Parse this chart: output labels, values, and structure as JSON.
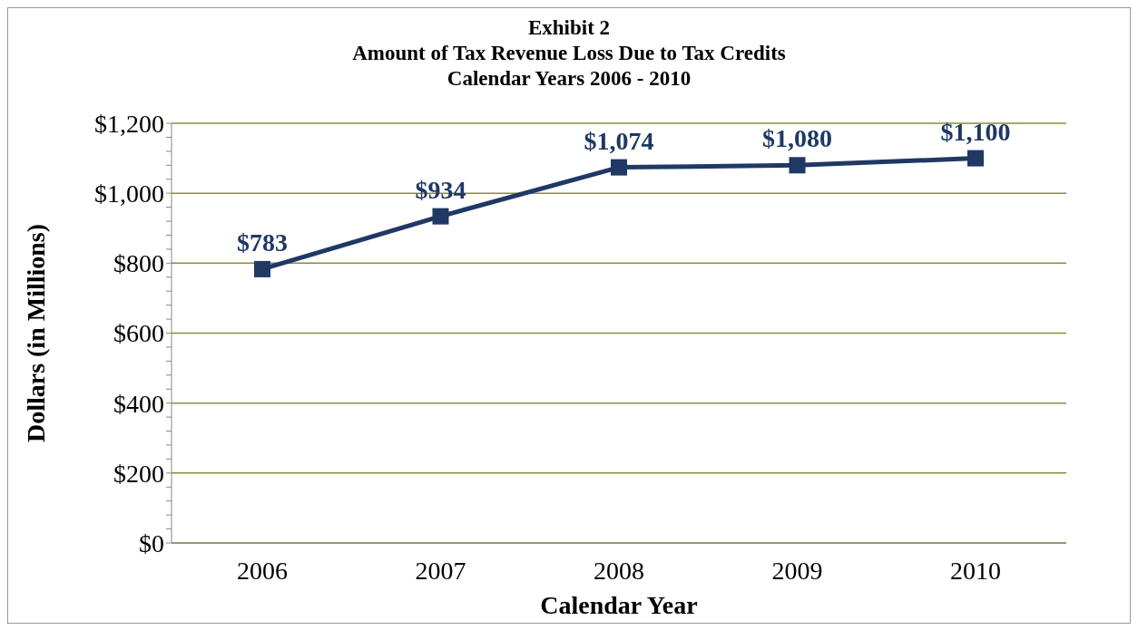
{
  "chart_data": {
    "type": "line",
    "title": "Exhibit 2\nAmount of Tax Revenue Loss Due to Tax Credits\nCalendar Years 2006 - 2010",
    "xlabel": "Calendar Year",
    "ylabel": "Dollars (in Millions)",
    "categories": [
      "2006",
      "2007",
      "2008",
      "2009",
      "2010"
    ],
    "series": [
      {
        "color": "#1f3864",
        "values": [
          783,
          934,
          1074,
          1080,
          1100
        ],
        "value_labels": [
          "$783",
          "$934",
          "$1,074",
          "$1,080",
          "$1,100"
        ]
      }
    ],
    "ylim": [
      0,
      1200
    ],
    "yticks": [
      {
        "value": 0,
        "label": "$0"
      },
      {
        "value": 40,
        "label": null
      },
      {
        "value": 80,
        "label": null
      },
      {
        "value": 120,
        "label": null
      },
      {
        "value": 160,
        "label": null
      },
      {
        "value": 200,
        "label": "$200"
      },
      {
        "value": 240,
        "label": null
      },
      {
        "value": 280,
        "label": null
      },
      {
        "value": 320,
        "label": null
      },
      {
        "value": 360,
        "label": null
      },
      {
        "value": 400,
        "label": "$400"
      },
      {
        "value": 440,
        "label": null
      },
      {
        "value": 480,
        "label": null
      },
      {
        "value": 520,
        "label": null
      },
      {
        "value": 560,
        "label": null
      },
      {
        "value": 600,
        "label": "$600"
      },
      {
        "value": 640,
        "label": null
      },
      {
        "value": 680,
        "label": null
      },
      {
        "value": 720,
        "label": null
      },
      {
        "value": 760,
        "label": null
      },
      {
        "value": 800,
        "label": "$800"
      },
      {
        "value": 840,
        "label": null
      },
      {
        "value": 880,
        "label": null
      },
      {
        "value": 920,
        "label": null
      },
      {
        "value": 960,
        "label": null
      },
      {
        "value": 1000,
        "label": "$1,000"
      },
      {
        "value": 1040,
        "label": null
      },
      {
        "value": 1080,
        "label": null
      },
      {
        "value": 1120,
        "label": null
      },
      {
        "value": 1160,
        "label": null
      },
      {
        "value": 1200,
        "label": "$1,200"
      }
    ],
    "grid": "y",
    "marker": "square",
    "line_style": "solid",
    "legend": false
  }
}
